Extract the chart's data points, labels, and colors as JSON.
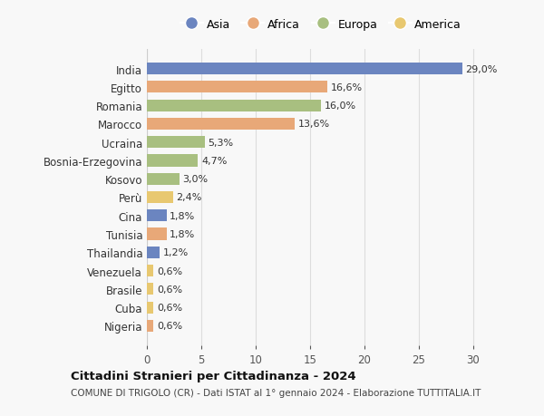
{
  "countries": [
    "India",
    "Egitto",
    "Romania",
    "Marocco",
    "Ucraina",
    "Bosnia-Erzegovina",
    "Kosovo",
    "Perù",
    "Cina",
    "Tunisia",
    "Thailandia",
    "Venezuela",
    "Brasile",
    "Cuba",
    "Nigeria"
  ],
  "values": [
    29.0,
    16.6,
    16.0,
    13.6,
    5.3,
    4.7,
    3.0,
    2.4,
    1.8,
    1.8,
    1.2,
    0.6,
    0.6,
    0.6,
    0.6
  ],
  "labels": [
    "29,0%",
    "16,6%",
    "16,0%",
    "13,6%",
    "5,3%",
    "4,7%",
    "3,0%",
    "2,4%",
    "1,8%",
    "1,8%",
    "1,2%",
    "0,6%",
    "0,6%",
    "0,6%",
    "0,6%"
  ],
  "continents": [
    "Asia",
    "Africa",
    "Europa",
    "Africa",
    "Europa",
    "Europa",
    "Europa",
    "America",
    "Asia",
    "Africa",
    "Asia",
    "America",
    "America",
    "America",
    "Africa"
  ],
  "colors": {
    "Asia": "#6b85c0",
    "Africa": "#e8a878",
    "Europa": "#a8bf80",
    "America": "#e8c870"
  },
  "legend_order": [
    "Asia",
    "Africa",
    "Europa",
    "America"
  ],
  "title": "Cittadini Stranieri per Cittadinanza - 2024",
  "subtitle": "COMUNE DI TRIGOLO (CR) - Dati ISTAT al 1° gennaio 2024 - Elaborazione TUTTITALIA.IT",
  "xlim": [
    0,
    32
  ],
  "xticks": [
    0,
    5,
    10,
    15,
    20,
    25,
    30
  ],
  "background_color": "#f8f8f8",
  "grid_color": "#dddddd"
}
